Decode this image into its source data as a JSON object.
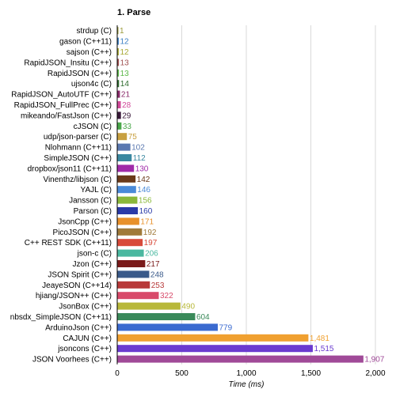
{
  "chart_data": {
    "type": "bar",
    "orientation": "horizontal",
    "title": "1. Parse",
    "xlabel": "Time (ms)",
    "xlim": [
      0,
      2000
    ],
    "xticks": [
      "0",
      "500",
      "1,000",
      "1,500",
      "2,000"
    ],
    "xtick_values": [
      0,
      500,
      1000,
      1500,
      2000
    ],
    "grid": true,
    "categories": [
      "strdup (C)",
      "gason (C++11)",
      "sajson (C++)",
      "RapidJSON_Insitu (C++)",
      "RapidJSON (C++)",
      "ujson4c (C)",
      "RapidJSON_AutoUTF (C++)",
      "RapidJSON_FullPrec (C++)",
      "mikeando/FastJson (C++)",
      "cJSON (C)",
      "udp/json-parser (C)",
      "Nlohmann (C++11)",
      "SimpleJSON (C++)",
      "dropbox/json11 (C++11)",
      "Vinenthz/libjson (C)",
      "YAJL (C)",
      "Jansson (C)",
      "Parson (C)",
      "JsonCpp (C++)",
      "PicoJSON (C++)",
      "C++ REST SDK (C++11)",
      "json-c (C)",
      "Jzon (C++)",
      "JSON Spirit (C++)",
      "JeayeSON (C++14)",
      "hjiang/JSON++ (C++)",
      "JsonBox (C++)",
      "nbsdx_SimpleJSON (C++11)",
      "ArduinoJson (C++)",
      "CAJUN (C++)",
      "jsoncons (C++)",
      "JSON Voorhees (C++)"
    ],
    "values": [
      1,
      12,
      12,
      13,
      13,
      14,
      21,
      28,
      29,
      33,
      75,
      102,
      112,
      130,
      142,
      146,
      156,
      160,
      171,
      192,
      197,
      206,
      217,
      248,
      253,
      322,
      490,
      604,
      779,
      1481,
      1515,
      1907
    ],
    "value_labels": [
      "1",
      "12",
      "12",
      "13",
      "13",
      "14",
      "21",
      "28",
      "29",
      "33",
      "75",
      "102",
      "112",
      "130",
      "142",
      "146",
      "156",
      "160",
      "171",
      "192",
      "197",
      "206",
      "217",
      "248",
      "253",
      "322",
      "490",
      "604",
      "779",
      "1,481",
      "1,515",
      "1,907"
    ],
    "colors": [
      "#9a9a3a",
      "#3b7fc4",
      "#a8a832",
      "#a05050",
      "#5cb84a",
      "#2e6b2e",
      "#8a2a6a",
      "#d24a9a",
      "#3a1a3a",
      "#4aa84a",
      "#c8a040",
      "#5a78b0",
      "#3a88a0",
      "#a02aa8",
      "#6a3a1a",
      "#4a8ad8",
      "#8ab83a",
      "#2a3aa8",
      "#e8902a",
      "#a07a3a",
      "#d84a3a",
      "#4ab8a0",
      "#7a1a1a",
      "#3a5a8a",
      "#b83a3a",
      "#d84a6a",
      "#b8b83a",
      "#3a8a5a",
      "#3a6ad0",
      "#f0a030",
      "#6a3ad0",
      "#a04a98"
    ]
  }
}
